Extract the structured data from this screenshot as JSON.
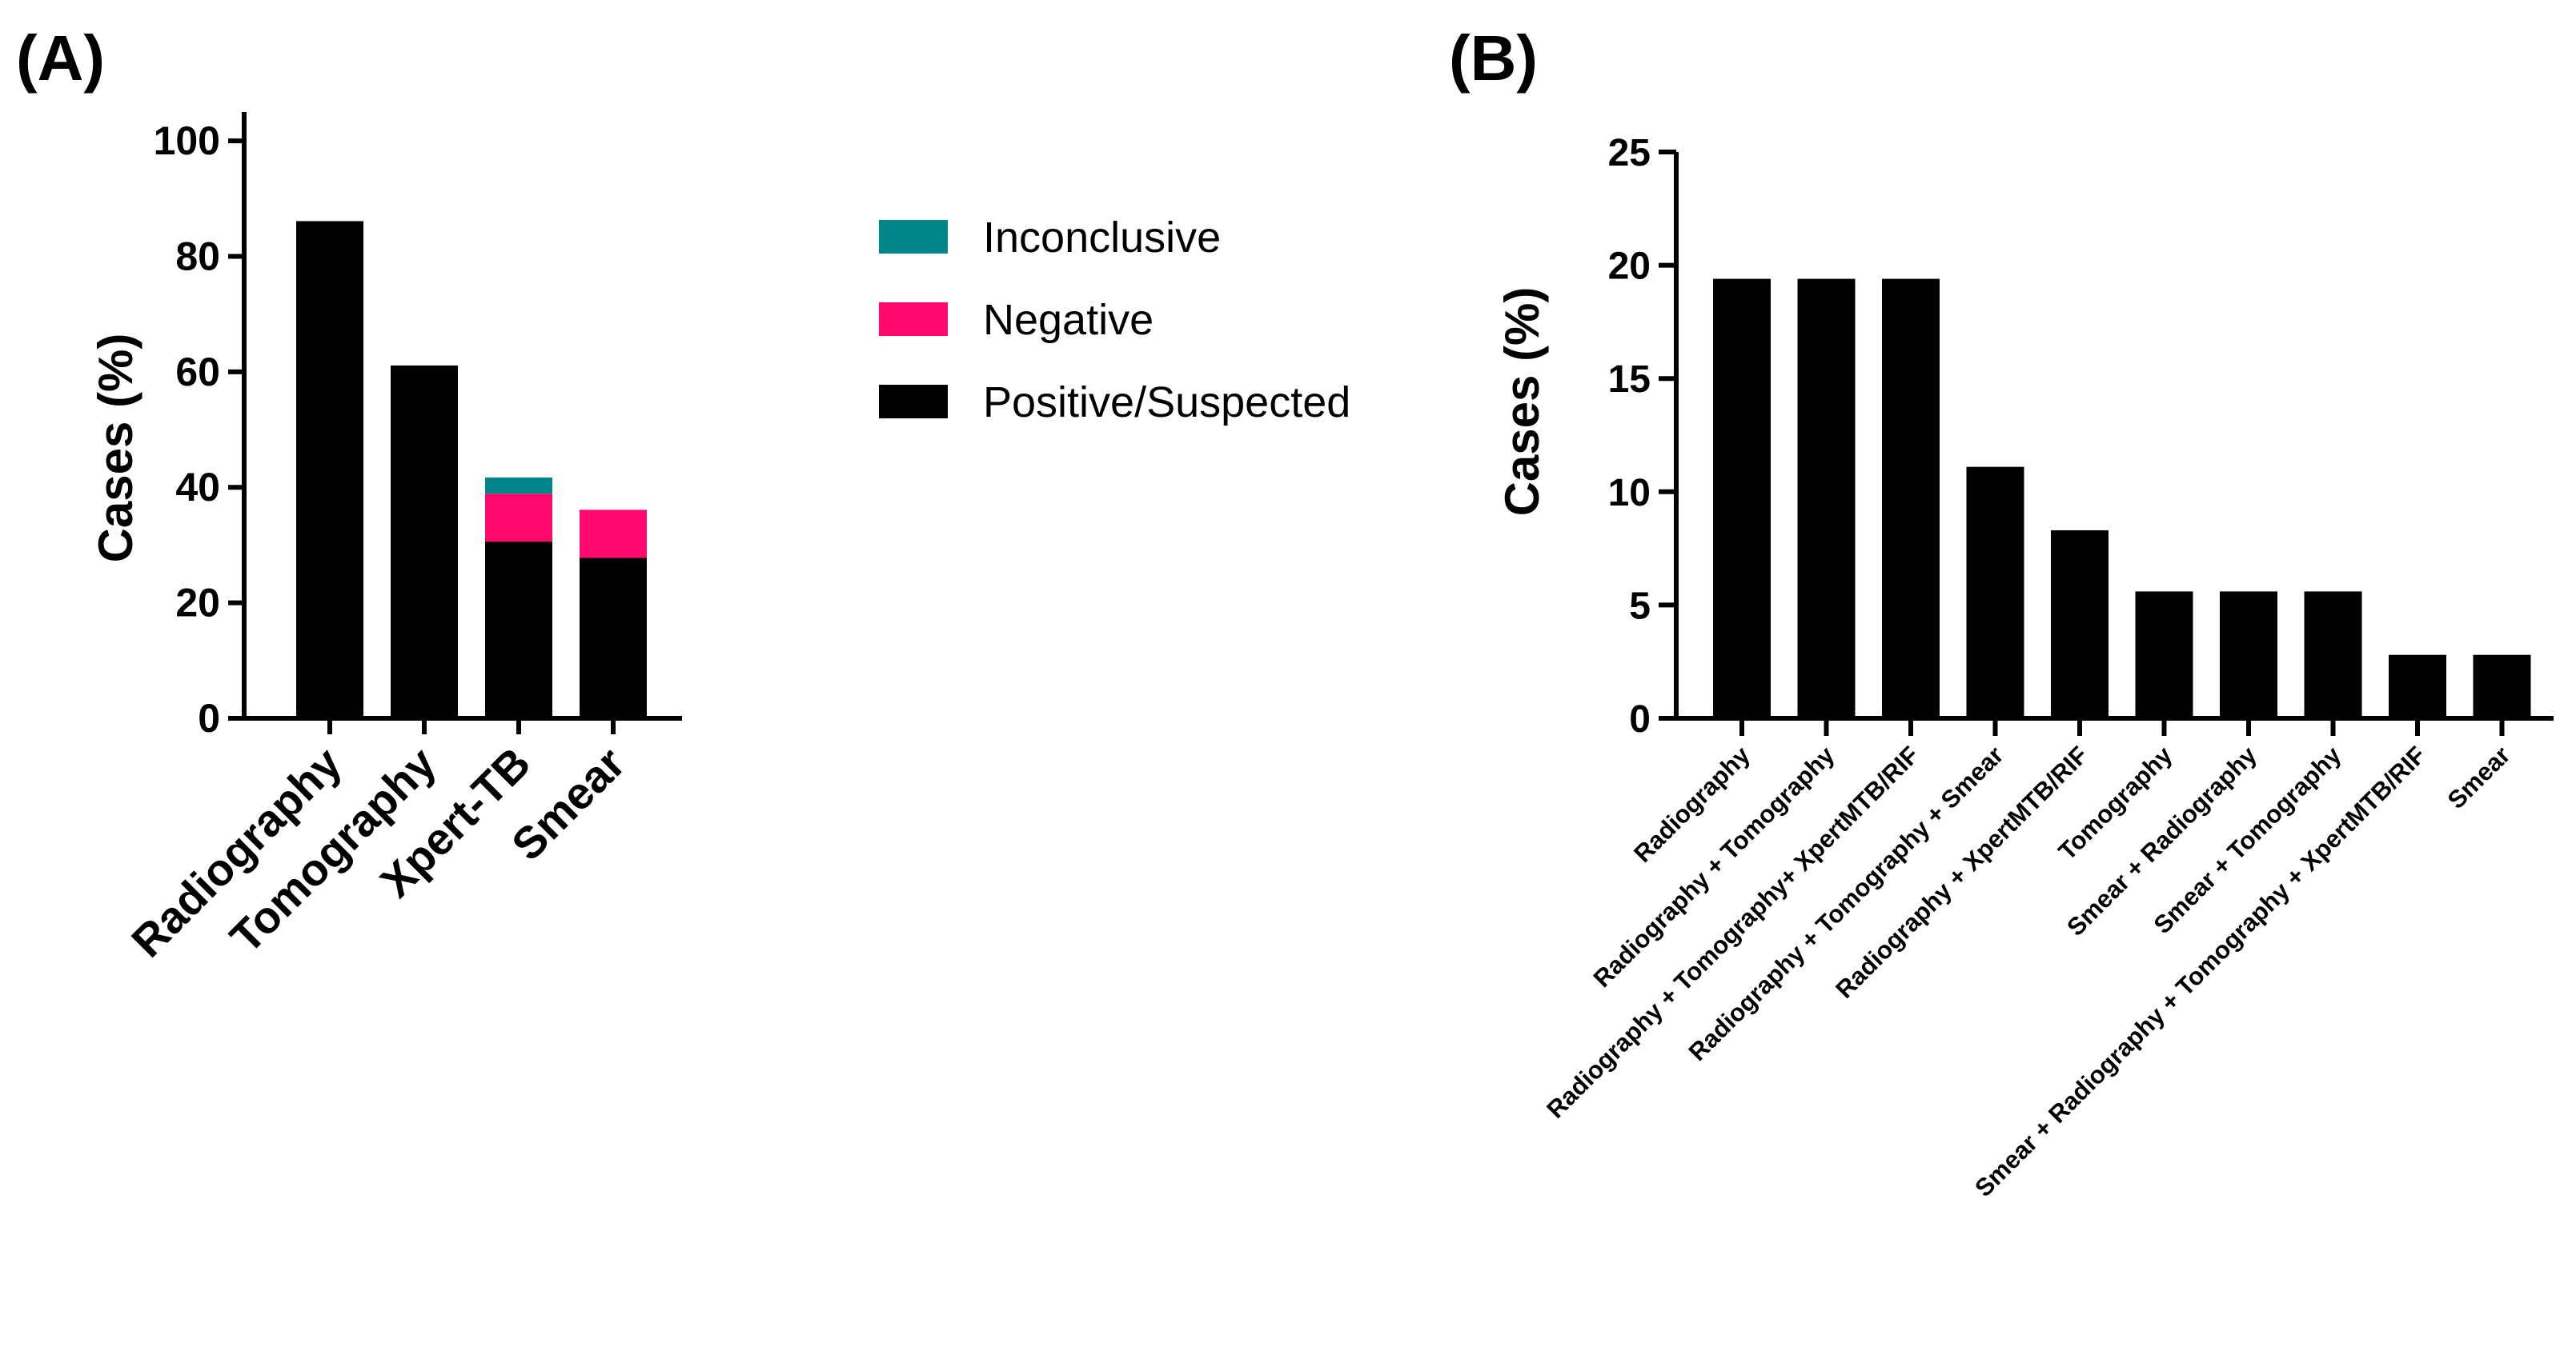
{
  "chart_data": [
    {
      "panel": "(A)",
      "type": "bar",
      "stacked": true,
      "title": "",
      "xlabel": "",
      "ylabel": "Cases (%)",
      "ylim": [
        0,
        105
      ],
      "yticks": [
        0,
        20,
        40,
        60,
        80,
        100
      ],
      "categories": [
        "Radiography",
        "Tomography",
        "Xpert-TB",
        "Smear"
      ],
      "series": [
        {
          "name": "Positive/Suspected",
          "color": "#000000",
          "values": [
            86.1,
            61.1,
            30.6,
            27.8
          ]
        },
        {
          "name": "Negative",
          "color": "#ff0a6c",
          "values": [
            0,
            0,
            8.3,
            8.3
          ]
        },
        {
          "name": "Inconclusive",
          "color": "#00868a",
          "values": [
            0,
            0,
            2.8,
            0
          ]
        }
      ],
      "legend_order": [
        "Inconclusive",
        "Negative",
        "Positive/Suspected"
      ],
      "legend_position": "right",
      "grid": false
    },
    {
      "panel": "(B)",
      "type": "bar",
      "title": "",
      "xlabel": "",
      "ylabel": "Cases (%)",
      "ylim": [
        0,
        25
      ],
      "yticks": [
        0,
        5,
        10,
        15,
        20,
        25
      ],
      "categories": [
        "Radiography",
        "Radiography + Tomography",
        "Radiography + Tomography+ XpertMTB/RIF",
        "Radiography + Tomography + Smear",
        "Radiography + XpertMTB/RIF",
        "Tomography",
        "Smear + Radiography",
        "Smear + Tomography",
        "Smear + Radiography + Tomography + XpertMTB/RIF",
        "Smear"
      ],
      "values": [
        19.4,
        19.4,
        19.4,
        11.1,
        8.3,
        5.6,
        5.6,
        5.6,
        2.8,
        2.8
      ],
      "color": "#000000",
      "grid": false
    }
  ]
}
